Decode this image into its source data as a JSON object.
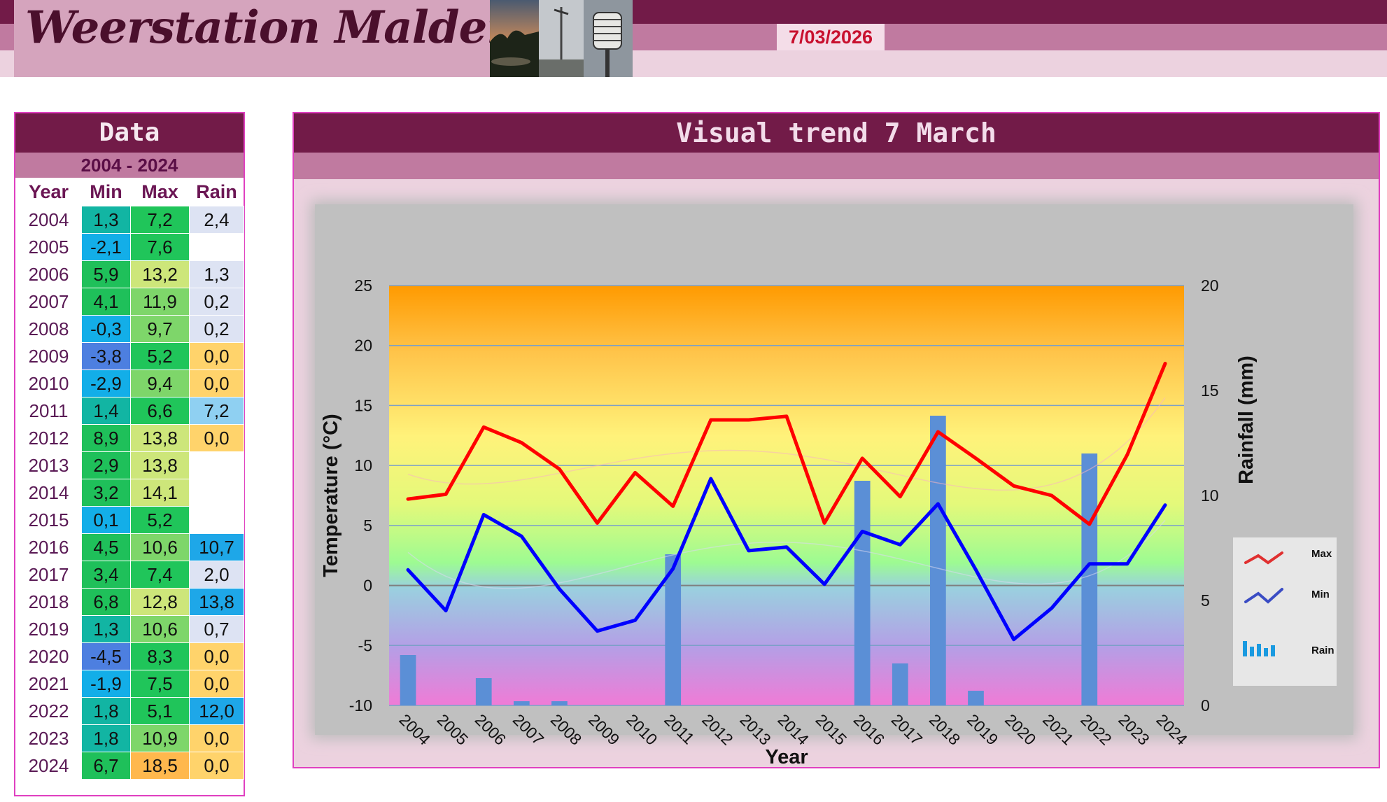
{
  "header": {
    "site_title": "Weerstation Malderen",
    "date": "7/03/2026"
  },
  "data_panel": {
    "title": "Data",
    "range": "2004 - 2024",
    "columns": [
      "Year",
      "Min",
      "Max",
      "Rain"
    ],
    "rows": [
      {
        "year": "2004",
        "min": "1,3",
        "max": "7,2",
        "rain": "2,4"
      },
      {
        "year": "2005",
        "min": "-2,1",
        "max": "7,6",
        "rain": ""
      },
      {
        "year": "2006",
        "min": "5,9",
        "max": "13,2",
        "rain": "1,3"
      },
      {
        "year": "2007",
        "min": "4,1",
        "max": "11,9",
        "rain": "0,2"
      },
      {
        "year": "2008",
        "min": "-0,3",
        "max": "9,7",
        "rain": "0,2"
      },
      {
        "year": "2009",
        "min": "-3,8",
        "max": "5,2",
        "rain": "0,0"
      },
      {
        "year": "2010",
        "min": "-2,9",
        "max": "9,4",
        "rain": "0,0"
      },
      {
        "year": "2011",
        "min": "1,4",
        "max": "6,6",
        "rain": "7,2"
      },
      {
        "year": "2012",
        "min": "8,9",
        "max": "13,8",
        "rain": "0,0"
      },
      {
        "year": "2013",
        "min": "2,9",
        "max": "13,8",
        "rain": ""
      },
      {
        "year": "2014",
        "min": "3,2",
        "max": "14,1",
        "rain": ""
      },
      {
        "year": "2015",
        "min": "0,1",
        "max": "5,2",
        "rain": ""
      },
      {
        "year": "2016",
        "min": "4,5",
        "max": "10,6",
        "rain": "10,7"
      },
      {
        "year": "2017",
        "min": "3,4",
        "max": "7,4",
        "rain": "2,0"
      },
      {
        "year": "2018",
        "min": "6,8",
        "max": "12,8",
        "rain": "13,8"
      },
      {
        "year": "2019",
        "min": "1,3",
        "max": "10,6",
        "rain": "0,7"
      },
      {
        "year": "2020",
        "min": "-4,5",
        "max": "8,3",
        "rain": "0,0"
      },
      {
        "year": "2021",
        "min": "-1,9",
        "max": "7,5",
        "rain": "0,0"
      },
      {
        "year": "2022",
        "min": "1,8",
        "max": "5,1",
        "rain": "12,0"
      },
      {
        "year": "2023",
        "min": "1,8",
        "max": "10,9",
        "rain": "0,0"
      },
      {
        "year": "2024",
        "min": "6,7",
        "max": "18,5",
        "rain": "0,0"
      }
    ],
    "colors": {
      "rain_high": "#1ea7e8",
      "rain_mid": "#8fd0f2",
      "rain_low": "#dde3f3",
      "rain_zero": "#ffd36b"
    }
  },
  "chart_panel": {
    "title": "Visual  trend 7 March"
  },
  "chart_data": {
    "type": "line",
    "categories": [
      "2004",
      "2005",
      "2006",
      "2007",
      "2008",
      "2009",
      "2010",
      "2011",
      "2012",
      "2013",
      "2014",
      "2015",
      "2016",
      "2017",
      "2018",
      "2019",
      "2020",
      "2021",
      "2022",
      "2023",
      "2024"
    ],
    "series": [
      {
        "name": "Max",
        "axis": "left",
        "color": "#ff0000",
        "values": [
          7.2,
          7.6,
          13.2,
          11.9,
          9.7,
          5.2,
          9.4,
          6.6,
          13.8,
          13.8,
          14.1,
          5.2,
          10.6,
          7.4,
          12.8,
          10.6,
          8.3,
          7.5,
          5.1,
          10.9,
          18.5
        ]
      },
      {
        "name": "Min",
        "axis": "left",
        "color": "#0000ff",
        "values": [
          1.3,
          -2.1,
          5.9,
          4.1,
          -0.3,
          -3.8,
          -2.9,
          1.4,
          8.9,
          2.9,
          3.2,
          0.1,
          4.5,
          3.4,
          6.8,
          1.3,
          -4.5,
          -1.9,
          1.8,
          1.8,
          6.7
        ]
      },
      {
        "name": "Rain",
        "axis": "right",
        "type": "bar",
        "color": "#5b8fd6",
        "values": [
          2.4,
          null,
          1.3,
          0.2,
          0.2,
          0.0,
          0.0,
          7.2,
          0.0,
          null,
          null,
          null,
          10.7,
          2.0,
          13.8,
          0.7,
          0.0,
          0.0,
          12.0,
          0.0,
          0.0
        ]
      }
    ],
    "xlabel": "Year",
    "ylabel": "Temperature (°C)",
    "y2label": "Rainfall (mm)",
    "ylim": [
      -10,
      25
    ],
    "y2lim": [
      0,
      20
    ],
    "yticks": [
      -10,
      -5,
      0,
      5,
      10,
      15,
      20,
      25
    ],
    "y2ticks": [
      0,
      5,
      10,
      15,
      20
    ],
    "grid": true,
    "legend": "right",
    "legend_labels": [
      "Max",
      "Min",
      "Rain"
    ]
  }
}
